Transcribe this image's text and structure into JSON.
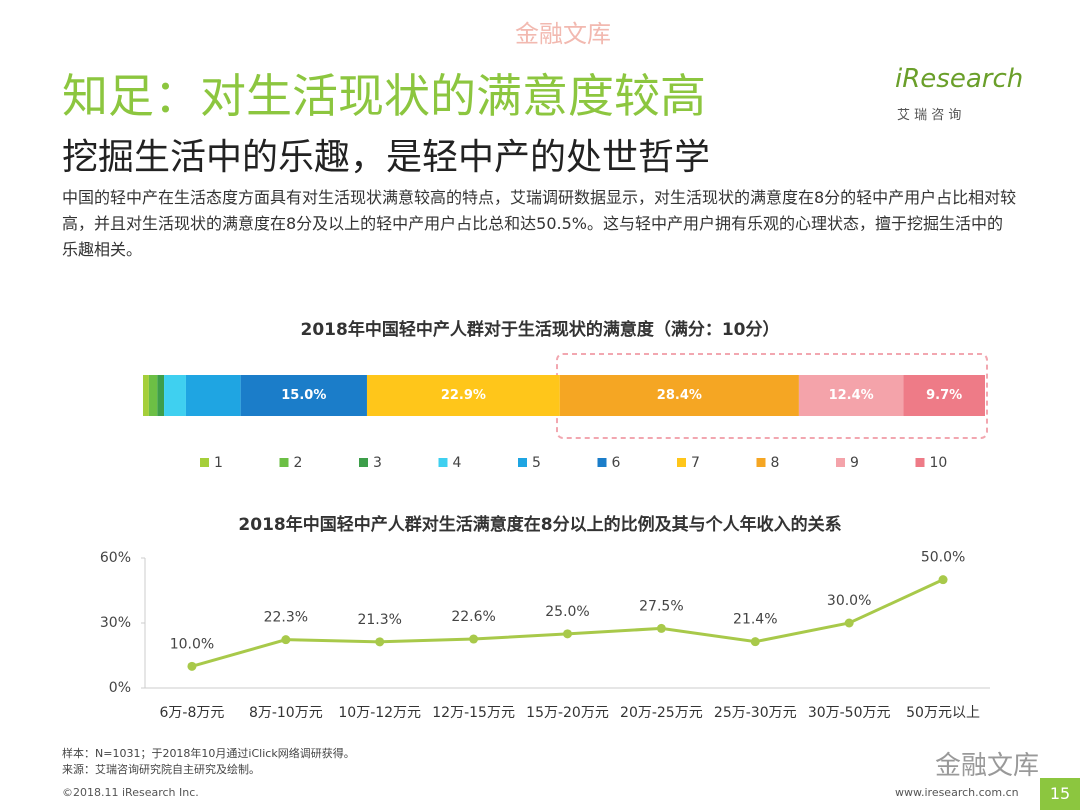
{
  "header": {
    "watermark": "金融文库",
    "title": "知足：对生活现状的满意度较高",
    "subtitle": "挖掘生活中的乐趣，是轻中产的处世哲学",
    "logo": "iResearch",
    "logo_sub": "艾 瑞 咨 询"
  },
  "paragraph": "中国的轻中产在生活态度方面具有对生活现状满意较高的特点，艾瑞调研数据显示，对生活现状的满意度在8分的轻中产用户占比相对较高，并且对生活现状的满意度在8分及以上的轻中产用户占比总和达50.5%。这与轻中产用户拥有乐观的心理状态，擅于挖掘生活中的乐趣相关。",
  "chart_data": [
    {
      "type": "stacked-bar",
      "title": "2018年中国轻中产人群对于生活现状的满意度（满分：10分）",
      "series": [
        {
          "name": "1",
          "color": "#a5cf3a",
          "values": [
            0.7
          ],
          "value_labels": [
            null
          ]
        },
        {
          "name": "2",
          "color": "#6cbf45",
          "values": [
            1.0
          ],
          "value_labels": [
            null
          ]
        },
        {
          "name": "3",
          "color": "#3d9e4a",
          "values": [
            0.8
          ],
          "value_labels": [
            null
          ]
        },
        {
          "name": "4",
          "color": "#3fd0f0",
          "values": [
            2.6
          ],
          "value_labels": [
            null
          ]
        },
        {
          "name": "5",
          "color": "#1fa5e2",
          "values": [
            6.5
          ],
          "value_labels": [
            null
          ]
        },
        {
          "name": "6",
          "color": "#1b7dc9",
          "values": [
            15.0
          ],
          "value_labels": [
            "15.0%"
          ]
        },
        {
          "name": "7",
          "color": "#ffc61a",
          "values": [
            22.9
          ],
          "value_labels": [
            "22.9%"
          ]
        },
        {
          "name": "8",
          "color": "#f5a623",
          "values": [
            28.4
          ],
          "value_labels": [
            "28.4%"
          ]
        },
        {
          "name": "9",
          "color": "#f4a3aa",
          "values": [
            12.4
          ],
          "value_labels": [
            "12.4%"
          ]
        },
        {
          "name": "10",
          "color": "#ee7b87",
          "values": [
            9.7
          ],
          "value_labels": [
            "9.7%"
          ]
        }
      ]
    },
    {
      "type": "line",
      "title": "2018年中国轻中产人群对生活满意度在8分以上的比例及其与个人年收入的关系",
      "categories": [
        "6万-8万元",
        "8万-10万元",
        "10万-12万元",
        "12万-15万元",
        "15万-20万元",
        "20万-25万元",
        "25万-30万元",
        "30万-50万元",
        "50万元以上"
      ],
      "values": [
        10.0,
        22.3,
        21.3,
        22.6,
        25.0,
        27.5,
        21.4,
        30.0,
        50.0
      ],
      "value_labels": [
        "10.0%",
        "22.3%",
        "21.3%",
        "22.6%",
        "25.0%",
        "27.5%",
        "21.4%",
        "30.0%",
        "50.0%"
      ],
      "color": "#a8c94a",
      "ylim": [
        0,
        60
      ],
      "yticks": [
        {
          "value": 0,
          "label": "0%"
        },
        {
          "value": 30,
          "label": "30%"
        },
        {
          "value": 60,
          "label": "60%"
        }
      ]
    }
  ],
  "footer": {
    "note1": "样本：N=1031；于2018年10月通过iClick网络调研获得。",
    "note2": "来源：艾瑞咨询研究院自主研究及绘制。",
    "copyright": "©2018.11 iResearch Inc.",
    "url": "www.iresearch.com.cn",
    "page": "15",
    "watermark": "金融文库"
  }
}
